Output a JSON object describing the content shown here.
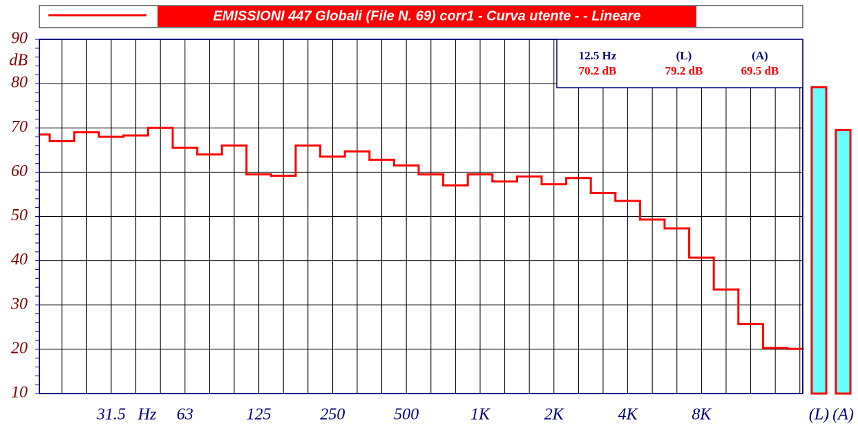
{
  "chart_data": {
    "type": "step",
    "title": "EMISSIONI 447 Globali  (File N. 69)  corr1 - Curva utente -  - Lineare",
    "y_unit": "dB",
    "x_unit": "Hz",
    "categories": [
      null,
      null,
      null,
      "31.5",
      null,
      null,
      "63",
      null,
      null,
      "125",
      null,
      null,
      "250",
      null,
      null,
      "500",
      null,
      null,
      "1K",
      null,
      null,
      "2K",
      null,
      null,
      "4K",
      null,
      null,
      "8K",
      null,
      null,
      null,
      null
    ],
    "series": [
      {
        "name": "EMISSIONI 447 Globali  (File N. 69)  corr1 - Curva utente -  - Lineare",
        "color": "#ff0000",
        "values": [
          68.5,
          67,
          69,
          68,
          68.3,
          70,
          65.5,
          64,
          66,
          59.5,
          59.2,
          66,
          63.5,
          64.7,
          62.8,
          61.5,
          59.5,
          57,
          59.5,
          57.9,
          59,
          57.3,
          58.7,
          55.3,
          53.5,
          49.3,
          47.3,
          40.7,
          33.5,
          25.7,
          20.3,
          20.1
        ]
      }
    ],
    "totals": {
      "categories": [
        "(L)",
        "(A)"
      ],
      "values": [
        79.2,
        69.5
      ],
      "color": "#66ffff",
      "edge": "#ff0000"
    },
    "readout": {
      "headers": [
        "12.5 Hz",
        "(L)",
        "(A)"
      ],
      "values": [
        "70.2 dB",
        "79.2 dB",
        "69.5 dB"
      ]
    },
    "ylim": [
      10,
      90
    ],
    "yticks": [
      10,
      20,
      30,
      40,
      50,
      60,
      70,
      80,
      90
    ],
    "grid": true
  }
}
